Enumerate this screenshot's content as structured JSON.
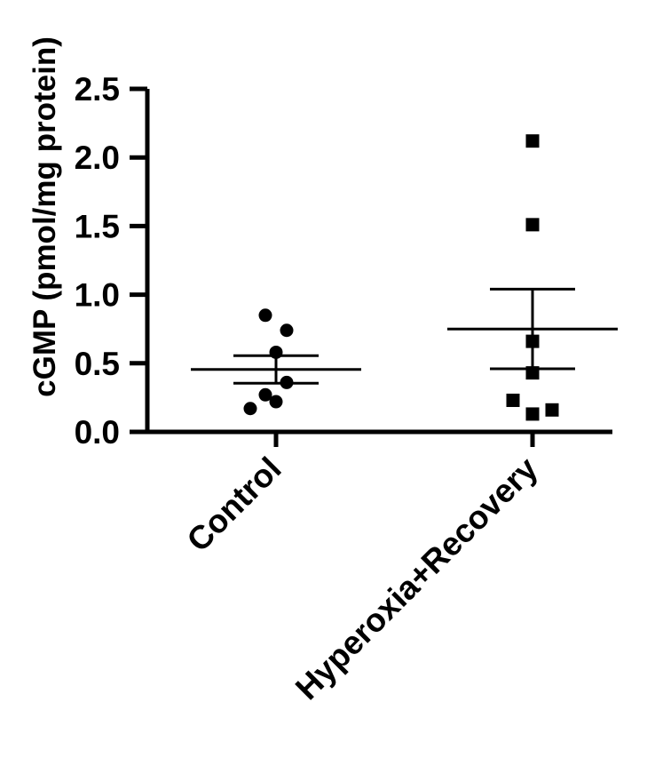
{
  "chart_data": {
    "type": "scatter",
    "title": "",
    "xlabel": "",
    "ylabel": "cGMP (pmol/mg protein)",
    "ylim": [
      0,
      2.5
    ],
    "yticks": [
      "0.0",
      "0.5",
      "1.0",
      "1.5",
      "2.0",
      "2.5"
    ],
    "categories": [
      "Control",
      "Hyperoxia+Recovery"
    ],
    "series": [
      {
        "category": "Control",
        "marker": "circle",
        "values": [
          0.85,
          0.74,
          0.58,
          0.36,
          0.27,
          0.22,
          0.17
        ],
        "mean": 0.455,
        "sem_upper": 0.555,
        "sem_lower": 0.355
      },
      {
        "category": "Hyperoxia+Recovery",
        "marker": "square",
        "values": [
          2.12,
          1.51,
          0.66,
          0.43,
          0.23,
          0.16,
          0.13
        ],
        "mean": 0.75,
        "sem_upper": 1.04,
        "sem_lower": 0.46
      }
    ],
    "colors": {
      "marks": "#000000"
    },
    "grid": false,
    "legend": "none"
  }
}
